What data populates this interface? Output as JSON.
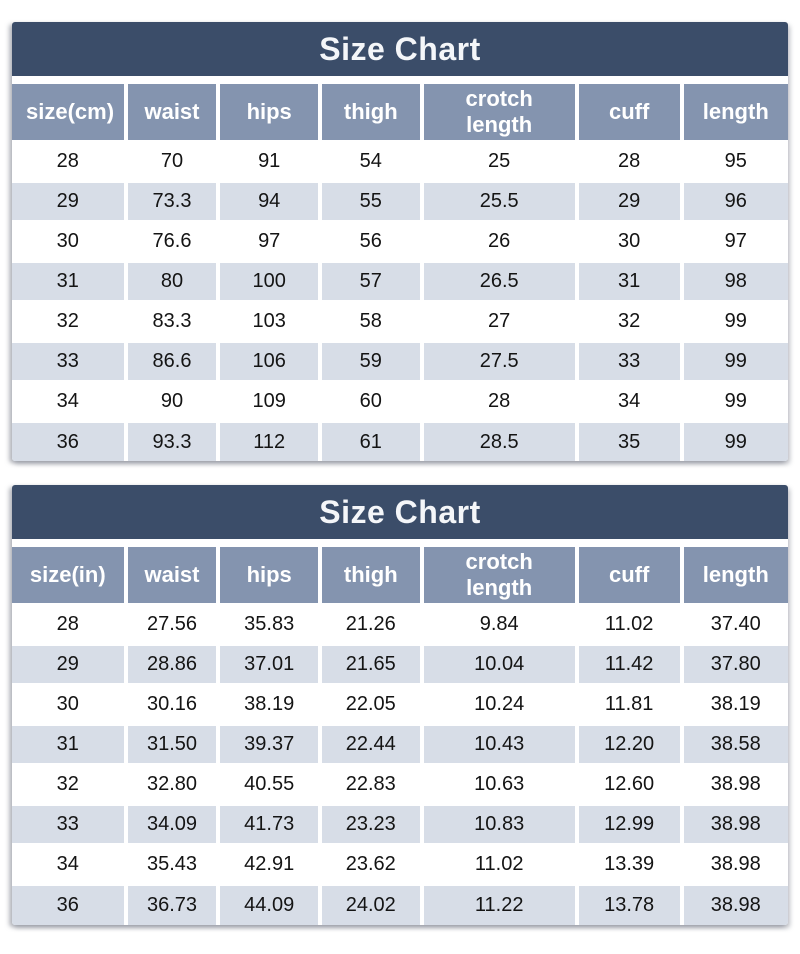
{
  "colors": {
    "title_bg": "#3b4d69",
    "header_bg": "#8494af",
    "row_bg": "#ffffff",
    "row_alt_bg": "#d7dde7",
    "title_text": "#f4f6f9",
    "header_text": "#ffffff",
    "cell_text": "#141414"
  },
  "chart_data": [
    {
      "type": "table",
      "title": "Size Chart",
      "unit": "cm",
      "columns": [
        "size(cm)",
        "waist",
        "hips",
        "thigh",
        "crotch length",
        "cuff",
        "length"
      ],
      "rows": [
        [
          "28",
          "70",
          "91",
          "54",
          "25",
          "28",
          "95"
        ],
        [
          "29",
          "73.3",
          "94",
          "55",
          "25.5",
          "29",
          "96"
        ],
        [
          "30",
          "76.6",
          "97",
          "56",
          "26",
          "30",
          "97"
        ],
        [
          "31",
          "80",
          "100",
          "57",
          "26.5",
          "31",
          "98"
        ],
        [
          "32",
          "83.3",
          "103",
          "58",
          "27",
          "32",
          "99"
        ],
        [
          "33",
          "86.6",
          "106",
          "59",
          "27.5",
          "33",
          "99"
        ],
        [
          "34",
          "90",
          "109",
          "60",
          "28",
          "34",
          "99"
        ],
        [
          "36",
          "93.3",
          "112",
          "61",
          "28.5",
          "35",
          "99"
        ]
      ]
    },
    {
      "type": "table",
      "title": "Size Chart",
      "unit": "in",
      "columns": [
        "size(in)",
        "waist",
        "hips",
        "thigh",
        "crotch length",
        "cuff",
        "length"
      ],
      "rows": [
        [
          "28",
          "27.56",
          "35.83",
          "21.26",
          "9.84",
          "11.02",
          "37.40"
        ],
        [
          "29",
          "28.86",
          "37.01",
          "21.65",
          "10.04",
          "11.42",
          "37.80"
        ],
        [
          "30",
          "30.16",
          "38.19",
          "22.05",
          "10.24",
          "11.81",
          "38.19"
        ],
        [
          "31",
          "31.50",
          "39.37",
          "22.44",
          "10.43",
          "12.20",
          "38.58"
        ],
        [
          "32",
          "32.80",
          "40.55",
          "22.83",
          "10.63",
          "12.60",
          "38.98"
        ],
        [
          "33",
          "34.09",
          "41.73",
          "23.23",
          "10.83",
          "12.99",
          "38.98"
        ],
        [
          "34",
          "35.43",
          "42.91",
          "23.62",
          "11.02",
          "13.39",
          "38.98"
        ],
        [
          "36",
          "36.73",
          "44.09",
          "24.02",
          "11.22",
          "13.78",
          "38.98"
        ]
      ]
    }
  ]
}
